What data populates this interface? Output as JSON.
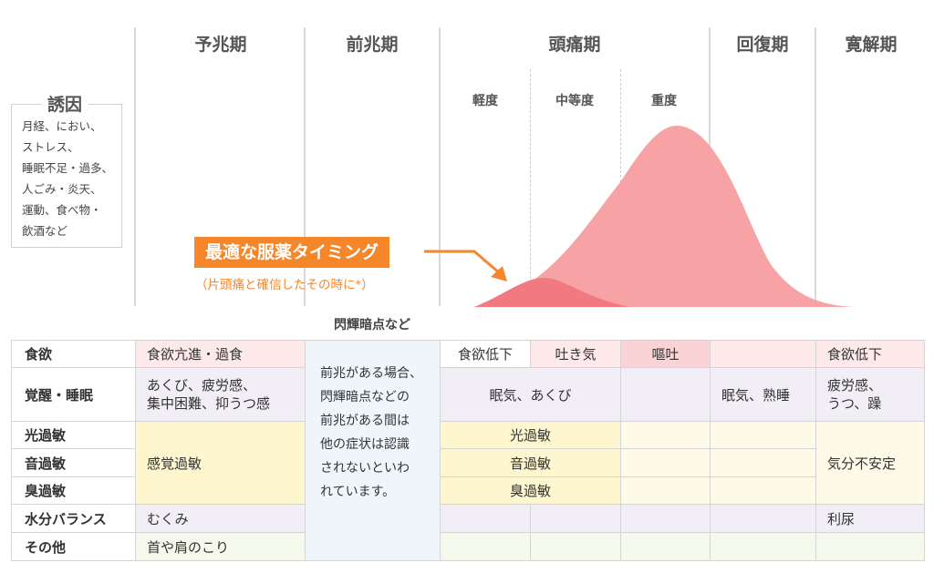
{
  "phases": {
    "prodrome": "予兆期",
    "aura": "前兆期",
    "headache": "頭痛期",
    "recovery": "回復期",
    "remission": "寛解期"
  },
  "severity": {
    "mild": "軽度",
    "moderate": "中等度",
    "severe": "重度"
  },
  "triggers": {
    "title": "誘因",
    "lines": [
      "月経、におい、",
      "ストレス、",
      "睡眠不足・過多、",
      "人ごみ・炎天、",
      "運動、食べ物・",
      "飲酒など"
    ]
  },
  "timing": {
    "label": "最適な服薬タイミング",
    "note": "（片頭痛と確信したその時に*）"
  },
  "aura_caption": "閃輝暗点など",
  "aura_note_lines": [
    "前兆がある場合、",
    "閃輝暗点などの",
    "前兆がある間は",
    "他の症状は認識",
    "されないといわ",
    "れています。"
  ],
  "rows": {
    "appetite": "食欲",
    "arousal": "覚醒・睡眠",
    "photo": "光過敏",
    "phono": "音過敏",
    "osmo": "臭過敏",
    "fluid": "水分バランス",
    "other": "その他"
  },
  "cells": {
    "appetite_prodrome": "食欲亢進・過食",
    "appetite_mild": "食欲低下",
    "appetite_moderate": "吐き気",
    "appetite_severe": "嘔吐",
    "appetite_remission": "食欲低下",
    "arousal_prodrome_1": "あくび、疲労感、",
    "arousal_prodrome_2": "集中困難、抑うつ感",
    "arousal_headache": "眠気、あくび",
    "arousal_recovery": "眠気、熟睡",
    "arousal_remission_1": "疲労感、",
    "arousal_remission_2": "うつ、躁",
    "sensory_prodrome": "感覚過敏",
    "photo_headache": "光過敏",
    "phono_headache": "音過敏",
    "osmo_headache": "臭過敏",
    "sensory_remission": "気分不安定",
    "fluid_prodrome": "むくみ",
    "fluid_remission": "利尿",
    "other_prodrome": "首や肩のこり"
  },
  "colors": {
    "curve_main": "#f7a3a5",
    "curve_aura": "#f07a80",
    "timing_orange": "#f5862a",
    "pink_cell": "#fde8ea",
    "lavender_cell": "#f2eef6",
    "yellow_cell": "#fdf6cf",
    "blue_cell": "#eef6fb",
    "green_cell": "#f5f9ec",
    "grid_line": "#d4d4d4"
  }
}
